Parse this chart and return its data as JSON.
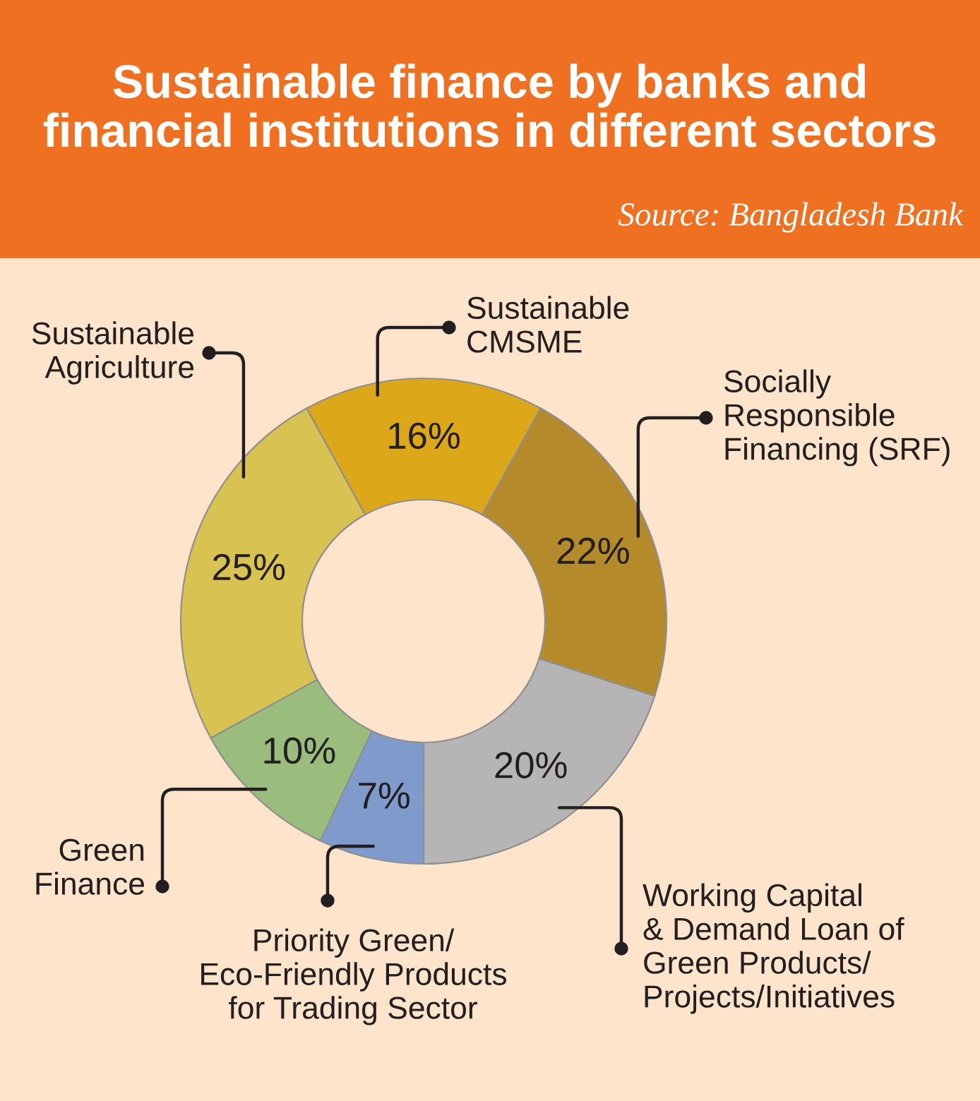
{
  "chart_data": {
    "type": "donut",
    "title": "Sustainable finance by banks and\nfinancial institutions in different sectors",
    "annotations": [
      "Source: Bangladesh Bank"
    ],
    "categories": [
      "Sustainable\nCMSME",
      "Socially\nResponsible\nFinancing (SRF)",
      "Working Capital\n& Demand Loan of\nGreen Products/\nProjects/Initiatives",
      "Priority Green/\nEco-Friendly Products\nfor Trading Sector",
      "Green\nFinance",
      "Sustainable\nAgriculture"
    ],
    "values": [
      16,
      22,
      20,
      7,
      10,
      25
    ],
    "value_labels": [
      "16%",
      "22%",
      "20%",
      "7%",
      "10%",
      "25%"
    ],
    "colors": [
      "#dca81a",
      "#b58a2a",
      "#b5b5b5",
      "#7e9bcb",
      "#9abd7e",
      "#d8c252"
    ]
  }
}
